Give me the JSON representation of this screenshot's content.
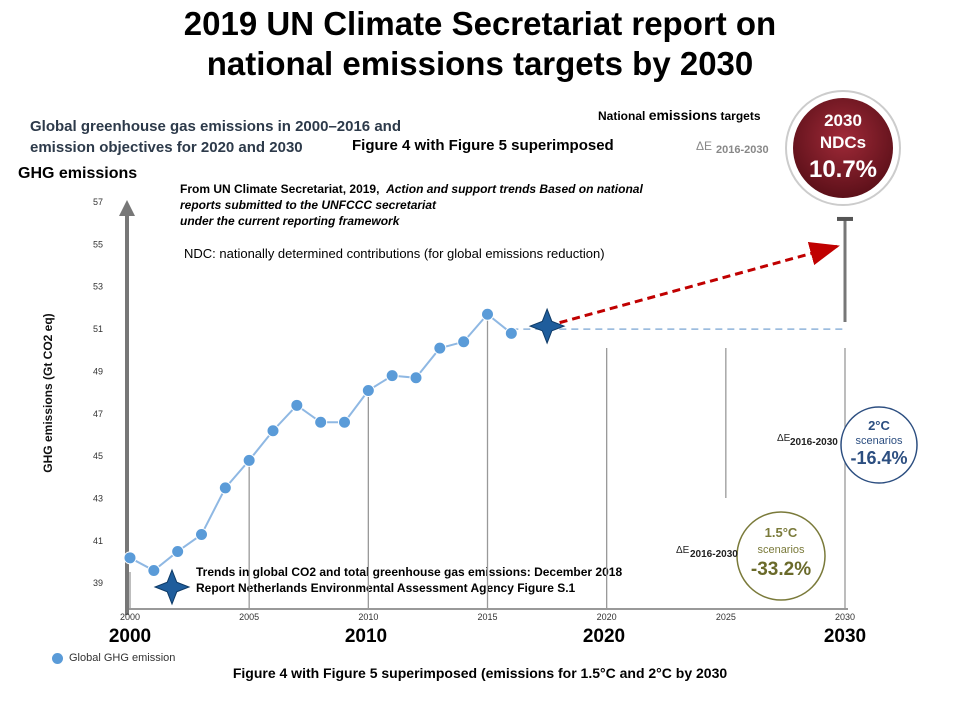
{
  "title_line1": "2019 UN Climate Secretariat report on",
  "title_line2": "national emissions targets by 2030",
  "subtitle_line1": "Global greenhouse gas emissions in 2000–2016 and",
  "subtitle_line2": "emission objectives for 2020 and 2030",
  "figure_note": "Figure 4 with Figure 5 superimposed",
  "ghg_label": "GHG emissions",
  "source_line1_a": "From UN Climate Secretariat, 2019,",
  "source_line1_b": "Action and support trends Based on national",
  "source_line2": "reports submitted to the UNFCCC secretariat",
  "source_line3": "under the current reporting framework",
  "ndc_note": "NDC: nationally determined  contributions  (for global emissions reduction)",
  "national_targets_a": "National",
  "national_targets_b": "emissions",
  "national_targets_c": "targets",
  "trend_note_line1": "Trends in global CO2 and total greenhouse gas emissions: December 2018",
  "trend_note_line2": "Report Netherlands Environmental Assessment Agency Figure S.1",
  "bottom_caption": "Figure 4 with Figure 5 superimposed (emissions for 1.5°C and 2°C by 2030",
  "legend_label": "Global GHG emission",
  "big_year_labels": [
    "2000",
    "2010",
    "2020",
    "2030"
  ],
  "ndc_badge": {
    "line1": "2030",
    "line2": "NDCs",
    "value": "10.7%",
    "delta_label": "ΔE",
    "delta_period": "2016-2030"
  },
  "badge_2c": {
    "line1": "2°C",
    "line2": "scenarios",
    "value": "-16.4%",
    "delta_label": "ΔE",
    "delta_period": "2016-2030"
  },
  "badge_15c": {
    "line1": "1.5°C",
    "line2": "scenarios",
    "value": "-33.2%",
    "delta_label": "ΔE",
    "delta_period": "2016-2030"
  },
  "colors": {
    "point": "#5a9bd8",
    "line": "#8fb8e3",
    "ndc_arrow": "#c00000",
    "ndc_badge": "#8a1c2a",
    "badge_2c": "#2c4e80",
    "badge_15c": "#7a7a3a",
    "star": "#1f5d9c"
  },
  "chart_data": {
    "type": "line",
    "xlabel": "",
    "ylabel": "GHG emissions (Gt CO2 eq)",
    "xlim": [
      2000,
      2030
    ],
    "ylim": [
      37.5,
      57
    ],
    "xticks": [
      2000,
      2005,
      2010,
      2015,
      2020,
      2025,
      2030
    ],
    "yticks": [
      39,
      41,
      43,
      45,
      47,
      49,
      51,
      53,
      55,
      57
    ],
    "series": [
      {
        "name": "Global GHG emission",
        "x": [
          2000,
          2001,
          2002,
          2003,
          2004,
          2005,
          2006,
          2007,
          2008,
          2009,
          2010,
          2011,
          2012,
          2013,
          2014,
          2015,
          2016
        ],
        "values": [
          40.2,
          39.6,
          40.5,
          41.3,
          43.5,
          44.8,
          46.2,
          47.4,
          46.6,
          46.6,
          48.1,
          48.8,
          48.7,
          50.1,
          50.4,
          51.7,
          50.8
        ]
      }
    ],
    "ndc_projection": {
      "x": [
        2017.5,
        2030
      ],
      "values": [
        51.0,
        55.0
      ]
    },
    "baseline_dashed": {
      "x": [
        2016,
        2030
      ],
      "values": [
        51.0,
        51.0
      ]
    },
    "ndc_target_2030": 56.2,
    "grid": false
  }
}
